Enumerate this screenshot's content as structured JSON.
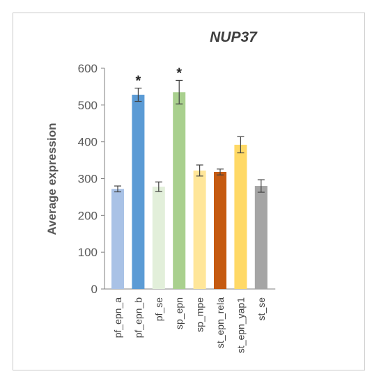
{
  "chart_data": {
    "type": "bar",
    "title": "NUP37",
    "ylabel": "Average expression",
    "xlabel": "",
    "ylim": [
      0,
      600
    ],
    "yticks": [
      0,
      100,
      200,
      300,
      400,
      500,
      600
    ],
    "categories": [
      "pf_epn_a",
      "pf_epn_b",
      "pf_se",
      "sp_epn",
      "sp_mpe",
      "st_epn_rela",
      "st_epn_yap1",
      "st_se"
    ],
    "values": [
      272,
      528,
      278,
      535,
      322,
      318,
      392,
      280
    ],
    "errors": [
      8,
      18,
      13,
      32,
      15,
      8,
      22,
      17
    ],
    "colors": [
      "#a9c2e6",
      "#5b9bd5",
      "#e2efda",
      "#a9d08e",
      "#ffe699",
      "#c55a11",
      "#ffd966",
      "#a5a5a5"
    ],
    "annotations": [
      "",
      "*",
      "",
      "*",
      "",
      "",
      "",
      ""
    ],
    "grid": false,
    "legend": "none"
  }
}
